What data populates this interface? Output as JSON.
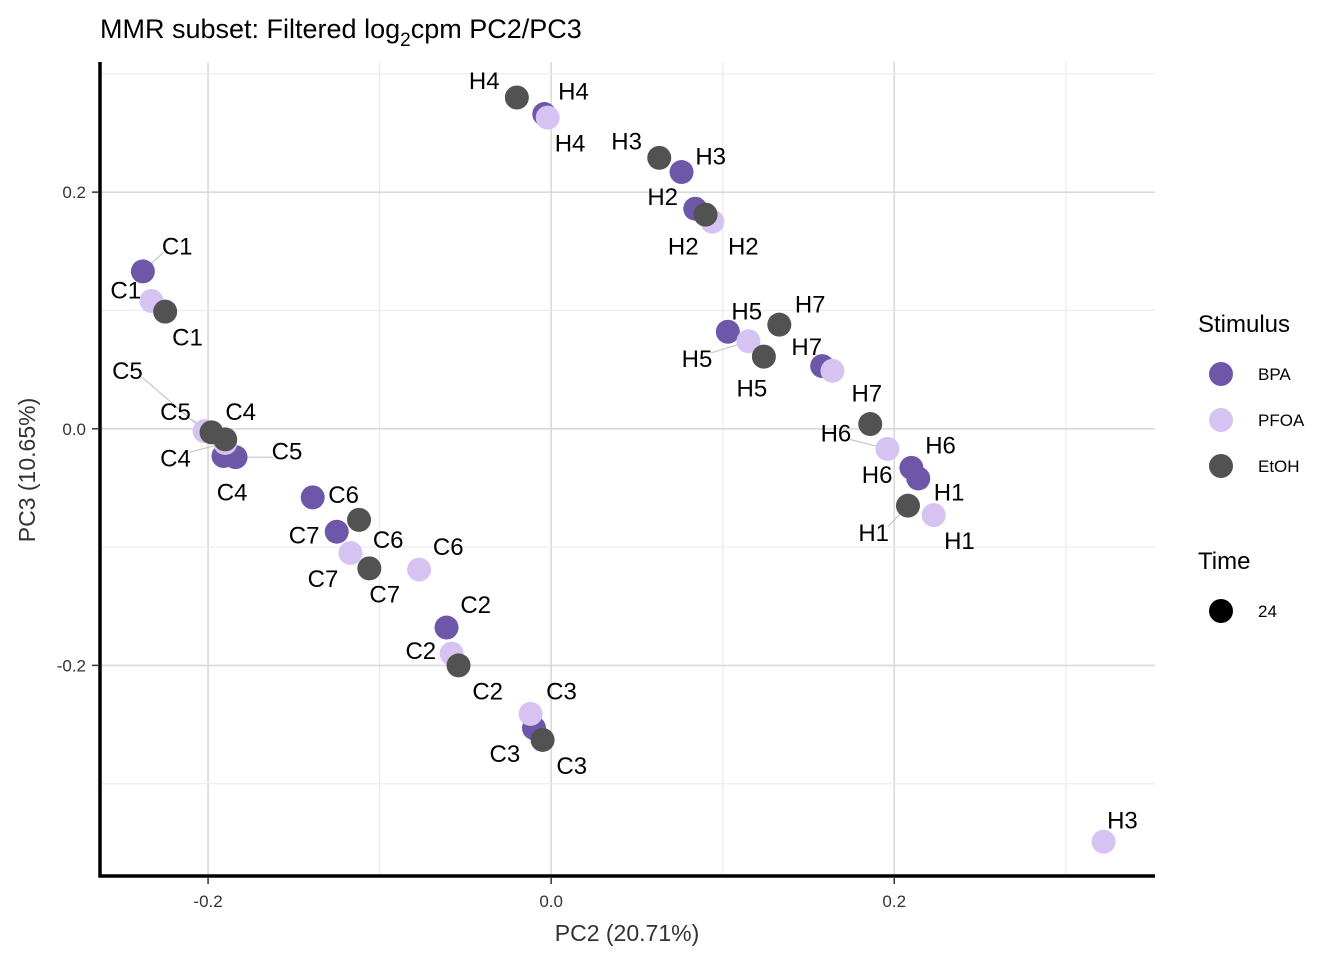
{
  "chart_data": {
    "type": "scatter",
    "title": "MMR subset: Filtered log2cpm PC2/PC3",
    "title_parts": {
      "main": "MMR subset: Filtered log",
      "subscript": "2",
      "rest": "cpm PC2/PC3"
    },
    "xlabel": "PC2 (20.71%)",
    "ylabel": "PC3 (10.65%)",
    "xlim": [
      -0.263,
      0.352
    ],
    "ylim": [
      -0.378,
      0.31
    ],
    "grid": true,
    "x_ticks": [
      {
        "value": -0.2,
        "label": "-0.2"
      },
      {
        "value": 0.0,
        "label": "0.0"
      },
      {
        "value": 0.2,
        "label": "0.2"
      }
    ],
    "y_ticks": [
      {
        "value": -0.2,
        "label": "-0.2"
      },
      {
        "value": 0.0,
        "label": "0.0"
      },
      {
        "value": 0.2,
        "label": "0.2"
      }
    ],
    "legend": {
      "placement": "right",
      "stimulus_title": "Stimulus",
      "stimulus_items": [
        {
          "name": "BPA",
          "color": "#6e57a8"
        },
        {
          "name": "PFOA",
          "color": "#d6c3f2"
        },
        {
          "name": "EtOH",
          "color": "#525252"
        }
      ],
      "time_title": "Time",
      "time_items": [
        {
          "name": "24",
          "color": "#000000"
        }
      ]
    },
    "series": [
      {
        "name": "BPA",
        "color": "#6e57a8",
        "points": [
          {
            "x": -0.238,
            "y": 0.133,
            "label": "C1"
          },
          {
            "x": -0.191,
            "y": -0.023,
            "label": "C4"
          },
          {
            "x": -0.184,
            "y": -0.024,
            "label": "C5"
          },
          {
            "x": -0.139,
            "y": -0.058,
            "label": "C6"
          },
          {
            "x": -0.125,
            "y": -0.087,
            "label": "C7"
          },
          {
            "x": -0.061,
            "y": -0.168,
            "label": "C2"
          },
          {
            "x": -0.01,
            "y": -0.253,
            "label": "C3"
          },
          {
            "x": -0.004,
            "y": 0.266,
            "label": "H4"
          },
          {
            "x": 0.076,
            "y": 0.217,
            "label": "H3"
          },
          {
            "x": 0.084,
            "y": 0.186,
            "label": "H2"
          },
          {
            "x": 0.103,
            "y": 0.082,
            "label": "H5"
          },
          {
            "x": 0.158,
            "y": 0.053,
            "label": "H7"
          },
          {
            "x": 0.21,
            "y": -0.033,
            "label": "H6"
          },
          {
            "x": 0.214,
            "y": -0.042,
            "label": "H1"
          }
        ]
      },
      {
        "name": "PFOA",
        "color": "#d6c3f2",
        "points": [
          {
            "x": -0.233,
            "y": 0.108,
            "label": "C1"
          },
          {
            "x": -0.202,
            "y": -0.002,
            "label": "C5"
          },
          {
            "x": -0.19,
            "y": -0.012,
            "label": "C4"
          },
          {
            "x": -0.117,
            "y": -0.105,
            "label": "C7"
          },
          {
            "x": -0.077,
            "y": -0.119,
            "label": "C6"
          },
          {
            "x": -0.058,
            "y": -0.19,
            "label": "C2"
          },
          {
            "x": -0.012,
            "y": -0.241,
            "label": "C3"
          },
          {
            "x": -0.002,
            "y": 0.263,
            "label": "H4"
          },
          {
            "x": 0.094,
            "y": 0.175,
            "label": "H2"
          },
          {
            "x": 0.115,
            "y": 0.074,
            "label": "H5"
          },
          {
            "x": 0.164,
            "y": 0.049,
            "label": "H7"
          },
          {
            "x": 0.196,
            "y": -0.017,
            "label": "H6"
          },
          {
            "x": 0.223,
            "y": -0.073,
            "label": "H1"
          },
          {
            "x": 0.322,
            "y": -0.349,
            "label": "H3"
          }
        ]
      },
      {
        "name": "EtOH",
        "color": "#525252",
        "points": [
          {
            "x": -0.225,
            "y": 0.099,
            "label": "C1"
          },
          {
            "x": -0.198,
            "y": -0.003,
            "label": "C5"
          },
          {
            "x": -0.19,
            "y": -0.009,
            "label": "C4"
          },
          {
            "x": -0.112,
            "y": -0.077,
            "label": "C6"
          },
          {
            "x": -0.106,
            "y": -0.118,
            "label": "C7"
          },
          {
            "x": -0.054,
            "y": -0.2,
            "label": "C2"
          },
          {
            "x": -0.005,
            "y": -0.263,
            "label": "C3"
          },
          {
            "x": -0.02,
            "y": 0.28,
            "label": "H4"
          },
          {
            "x": 0.063,
            "y": 0.229,
            "label": "H3"
          },
          {
            "x": 0.09,
            "y": 0.181,
            "label": "H2"
          },
          {
            "x": 0.133,
            "y": 0.088,
            "label": "H7"
          },
          {
            "x": 0.124,
            "y": 0.061,
            "label": "H5"
          },
          {
            "x": 0.186,
            "y": 0.004,
            "label": "H7"
          },
          {
            "x": 0.208,
            "y": -0.065,
            "label": "H1"
          }
        ]
      }
    ],
    "point_labels": [
      {
        "text": "C1",
        "x": -0.218,
        "y": 0.154,
        "lx": -0.238,
        "ly": 0.133
      },
      {
        "text": "C1",
        "x": -0.248,
        "y": 0.117,
        "lx": -0.233,
        "ly": 0.108
      },
      {
        "text": "C1",
        "x": -0.212,
        "y": 0.077,
        "lx": -0.225,
        "ly": 0.099
      },
      {
        "text": "C5",
        "x": -0.247,
        "y": 0.049,
        "lx": -0.202,
        "ly": -0.002
      },
      {
        "text": "C5",
        "x": -0.219,
        "y": 0.014,
        "lx": -0.198,
        "ly": -0.003
      },
      {
        "text": "C4",
        "x": -0.181,
        "y": 0.014,
        "lx": -0.19,
        "ly": -0.009
      },
      {
        "text": "C4",
        "x": -0.219,
        "y": -0.025,
        "lx": -0.19,
        "ly": -0.012
      },
      {
        "text": "C5",
        "x": -0.154,
        "y": -0.019,
        "lx": -0.184,
        "ly": -0.024
      },
      {
        "text": "C4",
        "x": -0.186,
        "y": -0.054,
        "lx": -0.191,
        "ly": -0.023
      },
      {
        "text": "C6",
        "x": -0.121,
        "y": -0.056,
        "lx": -0.139,
        "ly": -0.058
      },
      {
        "text": "C7",
        "x": -0.144,
        "y": -0.09,
        "lx": -0.125,
        "ly": -0.087
      },
      {
        "text": "C6",
        "x": -0.095,
        "y": -0.094,
        "lx": -0.112,
        "ly": -0.077
      },
      {
        "text": "C6",
        "x": -0.06,
        "y": -0.1,
        "lx": -0.077,
        "ly": -0.119
      },
      {
        "text": "C7",
        "x": -0.133,
        "y": -0.127,
        "lx": -0.117,
        "ly": -0.105
      },
      {
        "text": "C7",
        "x": -0.097,
        "y": -0.14,
        "lx": -0.106,
        "ly": -0.118
      },
      {
        "text": "C2",
        "x": -0.044,
        "y": -0.149,
        "lx": -0.061,
        "ly": -0.168
      },
      {
        "text": "C2",
        "x": -0.076,
        "y": -0.188,
        "lx": -0.058,
        "ly": -0.19
      },
      {
        "text": "C2",
        "x": -0.037,
        "y": -0.222,
        "lx": -0.054,
        "ly": -0.2
      },
      {
        "text": "C3",
        "x": 0.006,
        "y": -0.222,
        "lx": -0.012,
        "ly": -0.241
      },
      {
        "text": "C3",
        "x": -0.027,
        "y": -0.275,
        "lx": -0.01,
        "ly": -0.253
      },
      {
        "text": "C3",
        "x": 0.012,
        "y": -0.285,
        "lx": -0.005,
        "ly": -0.263
      },
      {
        "text": "H4",
        "x": -0.039,
        "y": 0.294,
        "lx": -0.02,
        "ly": 0.28
      },
      {
        "text": "H4",
        "x": 0.013,
        "y": 0.285,
        "lx": -0.004,
        "ly": 0.266
      },
      {
        "text": "H4",
        "x": 0.011,
        "y": 0.241,
        "lx": -0.002,
        "ly": 0.263
      },
      {
        "text": "H3",
        "x": 0.044,
        "y": 0.243,
        "lx": 0.063,
        "ly": 0.229
      },
      {
        "text": "H3",
        "x": 0.093,
        "y": 0.23,
        "lx": 0.076,
        "ly": 0.217
      },
      {
        "text": "H2",
        "x": 0.065,
        "y": 0.196,
        "lx": 0.084,
        "ly": 0.186
      },
      {
        "text": "H2",
        "x": 0.077,
        "y": 0.154,
        "lx": 0.09,
        "ly": 0.181
      },
      {
        "text": "H2",
        "x": 0.112,
        "y": 0.154,
        "lx": 0.094,
        "ly": 0.175
      },
      {
        "text": "H5",
        "x": 0.114,
        "y": 0.099,
        "lx": 0.103,
        "ly": 0.082
      },
      {
        "text": "H7",
        "x": 0.151,
        "y": 0.105,
        "lx": 0.133,
        "ly": 0.088
      },
      {
        "text": "H7",
        "x": 0.149,
        "y": 0.069,
        "lx": 0.158,
        "ly": 0.053
      },
      {
        "text": "H5",
        "x": 0.085,
        "y": 0.059,
        "lx": 0.115,
        "ly": 0.074
      },
      {
        "text": "H5",
        "x": 0.117,
        "y": 0.034,
        "lx": 0.124,
        "ly": 0.061
      },
      {
        "text": "H7",
        "x": 0.184,
        "y": 0.03,
        "lx": 0.186,
        "ly": 0.004
      },
      {
        "text": "H6",
        "x": 0.166,
        "y": -0.004,
        "lx": 0.196,
        "ly": -0.017
      },
      {
        "text": "H6",
        "x": 0.227,
        "y": -0.014,
        "lx": 0.21,
        "ly": -0.033
      },
      {
        "text": "H6",
        "x": 0.19,
        "y": -0.039,
        "lx": 0.21,
        "ly": -0.033
      },
      {
        "text": "H1",
        "x": 0.232,
        "y": -0.054,
        "lx": 0.214,
        "ly": -0.042
      },
      {
        "text": "H1",
        "x": 0.188,
        "y": -0.088,
        "lx": 0.208,
        "ly": -0.065
      },
      {
        "text": "H1",
        "x": 0.238,
        "y": -0.095,
        "lx": 0.223,
        "ly": -0.073
      },
      {
        "text": "H3",
        "x": 0.333,
        "y": -0.331,
        "lx": 0.322,
        "ly": -0.349
      }
    ]
  }
}
